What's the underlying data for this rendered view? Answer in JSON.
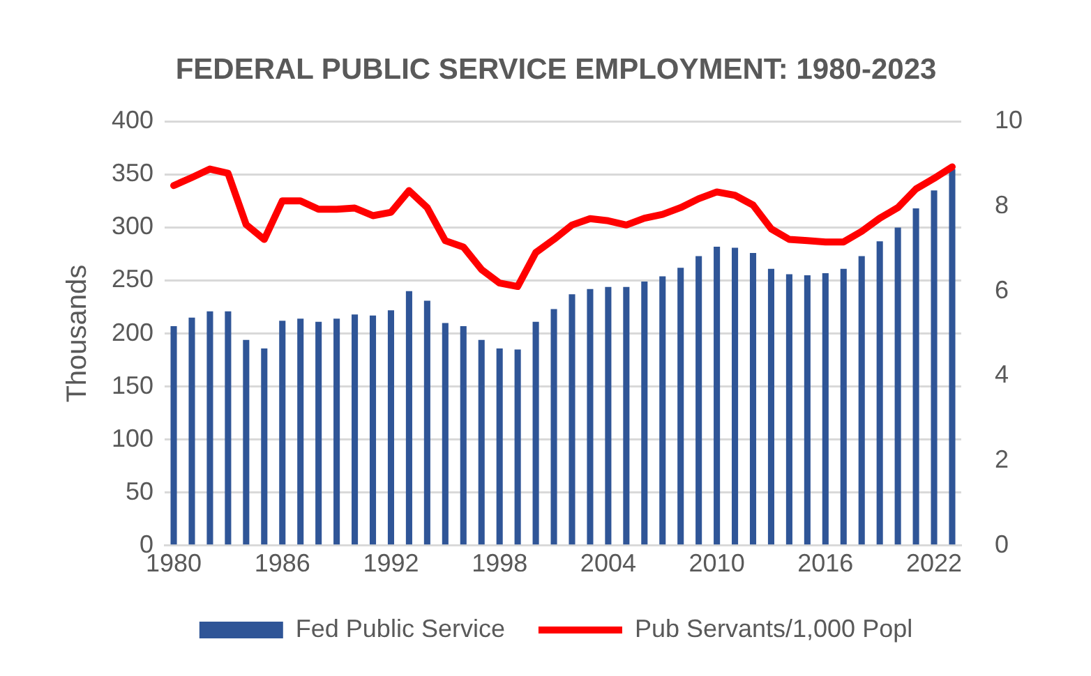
{
  "chart_data": {
    "type": "bar",
    "title": "FEDERAL PUBLIC SERVICE EMPLOYMENT: 1980-2023",
    "ylabel": "Thousands",
    "categories": [
      "1980",
      null,
      null,
      null,
      null,
      null,
      "1986",
      null,
      null,
      null,
      null,
      null,
      "1992",
      null,
      null,
      null,
      null,
      null,
      "1998",
      null,
      null,
      null,
      null,
      null,
      "2004",
      null,
      null,
      null,
      null,
      null,
      "2010",
      null,
      null,
      null,
      null,
      null,
      "2016",
      null,
      null,
      null,
      null,
      null,
      "2022",
      null
    ],
    "series": [
      {
        "name": "Fed Public Service",
        "color": "#2f5597",
        "values": [
          207,
          215,
          221,
          221,
          194,
          186,
          212,
          214,
          211,
          214,
          218,
          217,
          222,
          240,
          231,
          210,
          207,
          194,
          186,
          185,
          211,
          223,
          237,
          242,
          244,
          244,
          249,
          254,
          262,
          273,
          282,
          281,
          276,
          261,
          256,
          255,
          257,
          261,
          273,
          287,
          300,
          318,
          335,
          355
        ]
      },
      {
        "name": "Pub Servants/1,000 Popl",
        "type": "line",
        "axis": "y2",
        "color": "#ff0000",
        "values": [
          8.49,
          8.68,
          8.88,
          8.78,
          7.57,
          7.22,
          8.13,
          8.13,
          7.93,
          7.93,
          7.96,
          7.78,
          7.86,
          8.37,
          7.97,
          7.19,
          7.04,
          6.51,
          6.19,
          6.11,
          6.91,
          7.22,
          7.56,
          7.71,
          7.66,
          7.56,
          7.72,
          7.81,
          7.97,
          8.18,
          8.34,
          8.26,
          8.03,
          7.47,
          7.22,
          7.19,
          7.16,
          7.16,
          7.41,
          7.72,
          7.97,
          8.41,
          8.66,
          8.93
        ]
      }
    ],
    "ylim": [
      0,
      400
    ],
    "yticks": [
      0,
      50,
      100,
      150,
      200,
      250,
      300,
      350,
      400
    ],
    "y2lim": [
      0,
      10
    ],
    "y2ticks": [
      0,
      2,
      4,
      6,
      8,
      10
    ],
    "grid": "y",
    "legend": "bottom",
    "marker": "none",
    "line_style": "solid"
  }
}
